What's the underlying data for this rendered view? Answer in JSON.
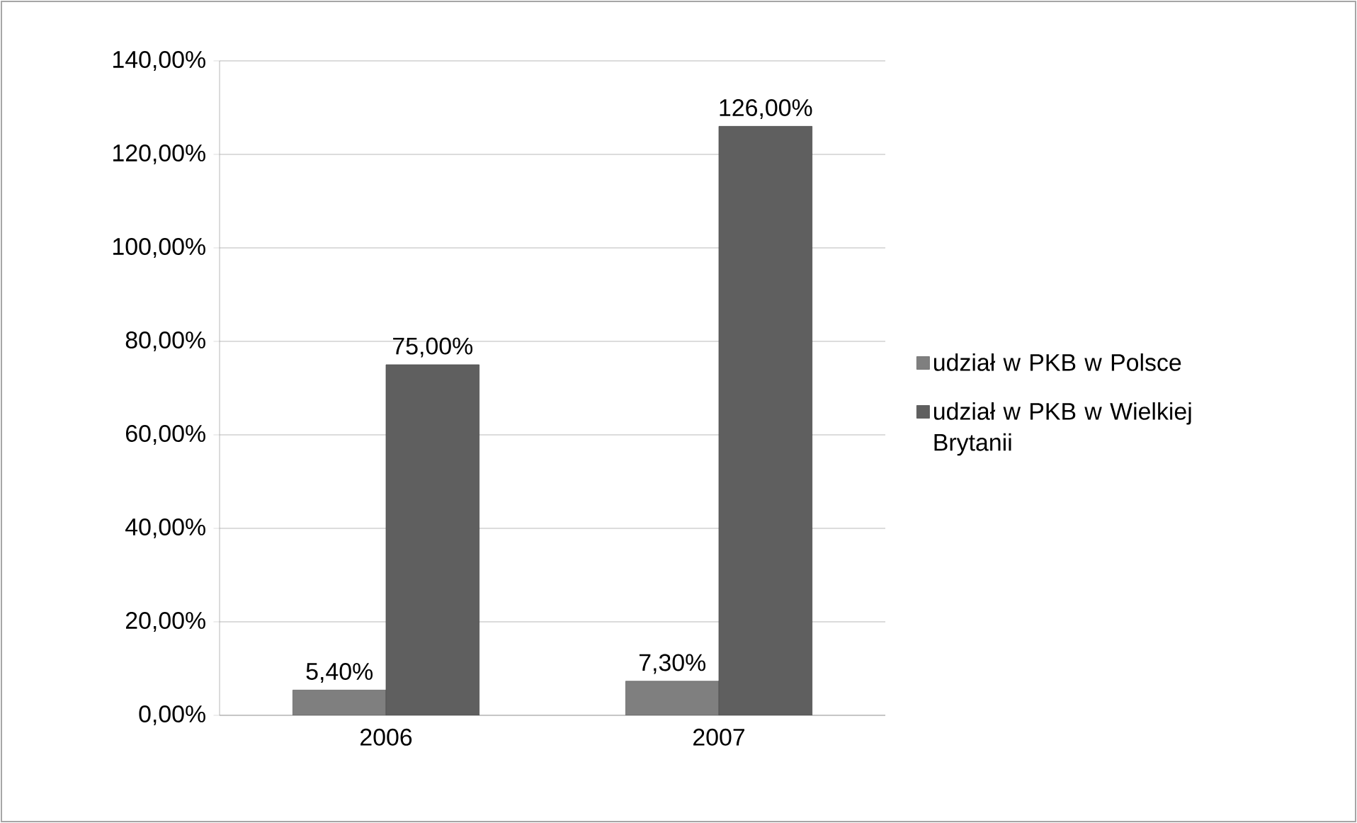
{
  "chart_data": {
    "type": "bar",
    "categories": [
      "2006",
      "2007"
    ],
    "series": [
      {
        "name": "udział w PKB w Polsce",
        "color": "#7f7f7f",
        "values": [
          5.4,
          7.3
        ],
        "value_labels": [
          "5,40%",
          "7,30%"
        ]
      },
      {
        "name": "udział w PKB w Wielkiej Brytanii",
        "color": "#5f5f5f",
        "values": [
          75,
          126
        ],
        "value_labels": [
          "75,00%",
          "126,00%"
        ]
      }
    ],
    "ylim": [
      0,
      140
    ],
    "yticks": [
      {
        "value": 0,
        "label": "0,00%"
      },
      {
        "value": 20,
        "label": "20,00%"
      },
      {
        "value": 40,
        "label": "40,00%"
      },
      {
        "value": 60,
        "label": "60,00%"
      },
      {
        "value": 80,
        "label": "80,00%"
      },
      {
        "value": 100,
        "label": "100,00%"
      },
      {
        "value": 120,
        "label": "120,00%"
      },
      {
        "value": 140,
        "label": "140,00%"
      }
    ],
    "grid": "y",
    "legend": "right"
  }
}
